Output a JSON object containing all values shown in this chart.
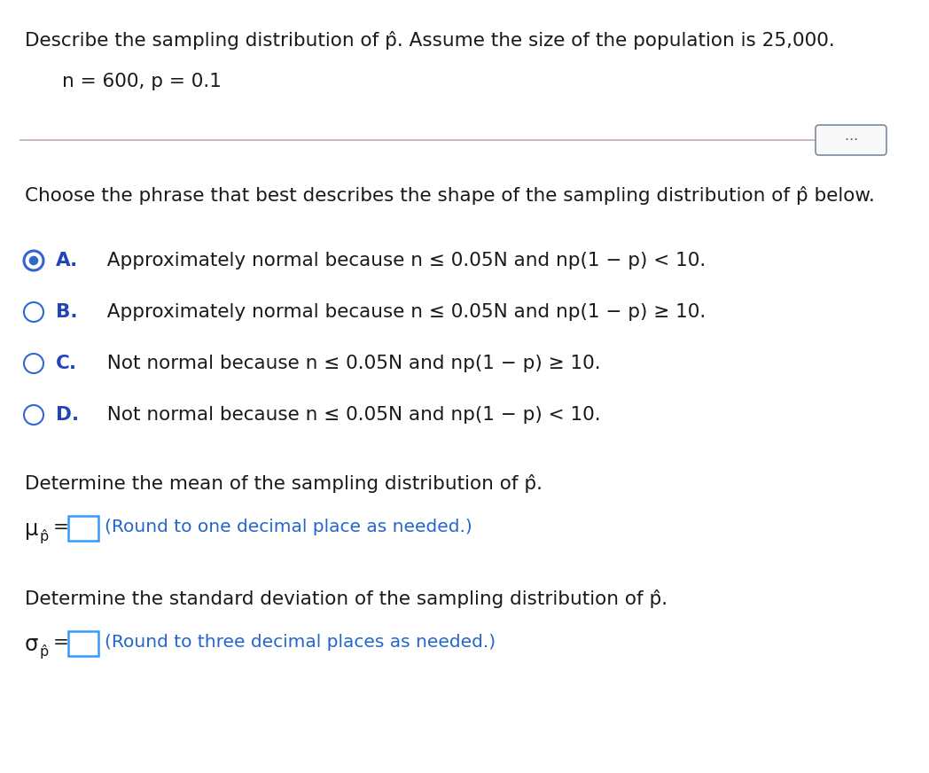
{
  "bg_color": "#ffffff",
  "title_line1": "Describe the sampling distribution of p̂. Assume the size of the population is 25,000.",
  "params_line": "n = 600, p = 0.1",
  "question_line": "Choose the phrase that best describes the shape of the sampling distribution of p̂ below.",
  "options": [
    {
      "letter": "A.",
      "text": "  Approximately normal because n ≤ 0.05N and np(1 − p) < 10.",
      "selected": true
    },
    {
      "letter": "B.",
      "text": "  Approximately normal because n ≤ 0.05N and np(1 − p) ≥ 10.",
      "selected": false
    },
    {
      "letter": "C.",
      "text": "  Not normal because n ≤ 0.05N and np(1 − p) ≥ 10.",
      "selected": false
    },
    {
      "letter": "D.",
      "text": "  Not normal because n ≤ 0.05N and np(1 − p) < 10.",
      "selected": false
    }
  ],
  "mean_section_title": "Determine the mean of the sampling distribution of p̂.",
  "mean_instruction": "(Round to one decimal place as needed.)",
  "std_section_title": "Determine the standard deviation of the sampling distribution of p̂.",
  "std_instruction": "(Round to three decimal places as needed.)",
  "separator_color": "#c0aab8",
  "radio_selected_color": "#3366cc",
  "radio_unselected_color": "#3366cc",
  "letter_color": "#2244bb",
  "text_color": "#1a1a1a",
  "instruction_color": "#2266cc",
  "input_box_color": "#3399ff",
  "dots_border_color": "#7a8a9a",
  "dots_fill_color": "#f8f8f8",
  "main_font_size": 15.5,
  "param_font_size": 15.5,
  "option_font_size": 15.5
}
